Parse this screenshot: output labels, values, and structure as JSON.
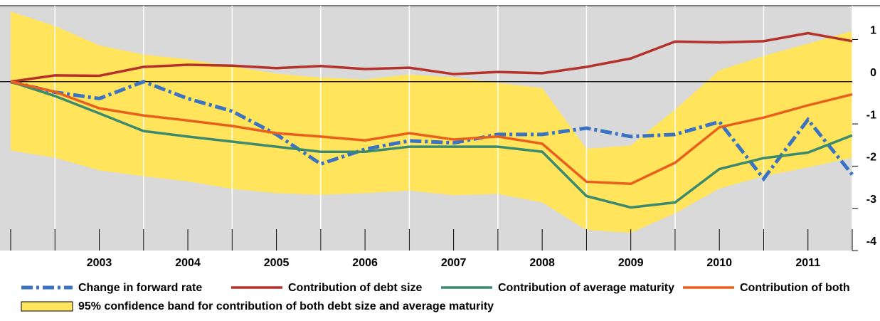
{
  "chart_data": {
    "type": "line",
    "categories": [
      null,
      null,
      "2003",
      null,
      "2004",
      null,
      "2005",
      null,
      "2006",
      null,
      "2007",
      null,
      "2008",
      null,
      "2009",
      null,
      "2010",
      null,
      "2011",
      null
    ],
    "ylim": [
      -4,
      1.8
    ],
    "yticks": [
      -4,
      -3,
      -2,
      -1,
      0,
      1
    ],
    "band": {
      "name": "95% confidence band for contribution of both debt size and average maturity",
      "color": "#ffe45c",
      "upper": [
        1.66,
        1.32,
        0.86,
        0.64,
        0.53,
        0.36,
        0.19,
        0.1,
        0.05,
        0.17,
        0.1,
        -0.03,
        -0.15,
        -1.59,
        -1.51,
        -0.66,
        0.27,
        0.61,
        0.9,
        1.2
      ],
      "lower": [
        -1.63,
        -1.8,
        -2.1,
        -2.24,
        -2.36,
        -2.54,
        -2.64,
        -2.68,
        -2.64,
        -2.58,
        -2.69,
        -2.66,
        -2.86,
        -3.51,
        -3.58,
        -3.12,
        -2.53,
        -2.24,
        -2.03,
        -1.8
      ]
    },
    "series": [
      {
        "name": "Change in forward rate",
        "color": "#3a72c4",
        "dash": "dashdot",
        "values": [
          0,
          -0.25,
          -0.4,
          0,
          -0.4,
          -0.7,
          -1.25,
          -1.95,
          -1.6,
          -1.4,
          -1.45,
          -1.25,
          -1.25,
          -1.1,
          -1.3,
          -1.25,
          -0.95,
          -2.3,
          -0.9,
          -2.2
        ]
      },
      {
        "name": "Contribution of debt size",
        "color": "#b5312b",
        "values": [
          0,
          0.15,
          0.14,
          0.35,
          0.4,
          0.38,
          0.32,
          0.37,
          0.3,
          0.33,
          0.18,
          0.23,
          0.2,
          0.35,
          0.55,
          0.95,
          0.93,
          0.96,
          1.15,
          0.96
        ]
      },
      {
        "name": "Contribution of average maturity",
        "color": "#3c8a6e",
        "values": [
          0,
          -0.34,
          -0.75,
          -1.17,
          -1.3,
          -1.42,
          -1.54,
          -1.66,
          -1.66,
          -1.54,
          -1.54,
          -1.54,
          -1.66,
          -2.71,
          -2.98,
          -2.86,
          -2.07,
          -1.81,
          -1.68,
          -1.27
        ]
      },
      {
        "name": "Contribution of both",
        "color": "#e8601c",
        "values": [
          0,
          -0.24,
          -0.63,
          -0.8,
          -0.92,
          -1.05,
          -1.22,
          -1.3,
          -1.39,
          -1.22,
          -1.37,
          -1.3,
          -1.47,
          -2.37,
          -2.42,
          -1.92,
          -1.08,
          -0.85,
          -0.56,
          -0.3
        ]
      }
    ]
  }
}
